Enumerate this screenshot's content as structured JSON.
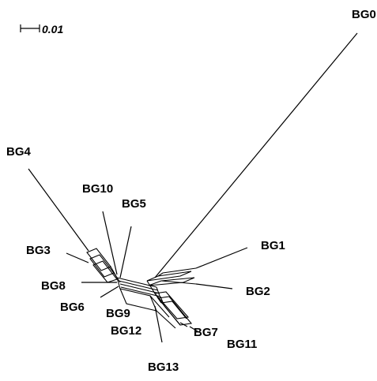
{
  "scale_bar": {
    "label": "0.01"
  },
  "taxa": [
    {
      "id": "BG0",
      "label": "BG0"
    },
    {
      "id": "BG1",
      "label": "BG1"
    },
    {
      "id": "BG2",
      "label": "BG2"
    },
    {
      "id": "BG3",
      "label": "BG3"
    },
    {
      "id": "BG4",
      "label": "BG4"
    },
    {
      "id": "BG5",
      "label": "BG5"
    },
    {
      "id": "BG6",
      "label": "BG6"
    },
    {
      "id": "BG7",
      "label": "BG7"
    },
    {
      "id": "BG8",
      "label": "BG8"
    },
    {
      "id": "BG9",
      "label": "BG9"
    },
    {
      "id": "BG10",
      "label": "BG10"
    },
    {
      "id": "BG11",
      "label": "BG11"
    },
    {
      "id": "BG12",
      "label": "BG12"
    },
    {
      "id": "BG13",
      "label": "BG13"
    }
  ]
}
